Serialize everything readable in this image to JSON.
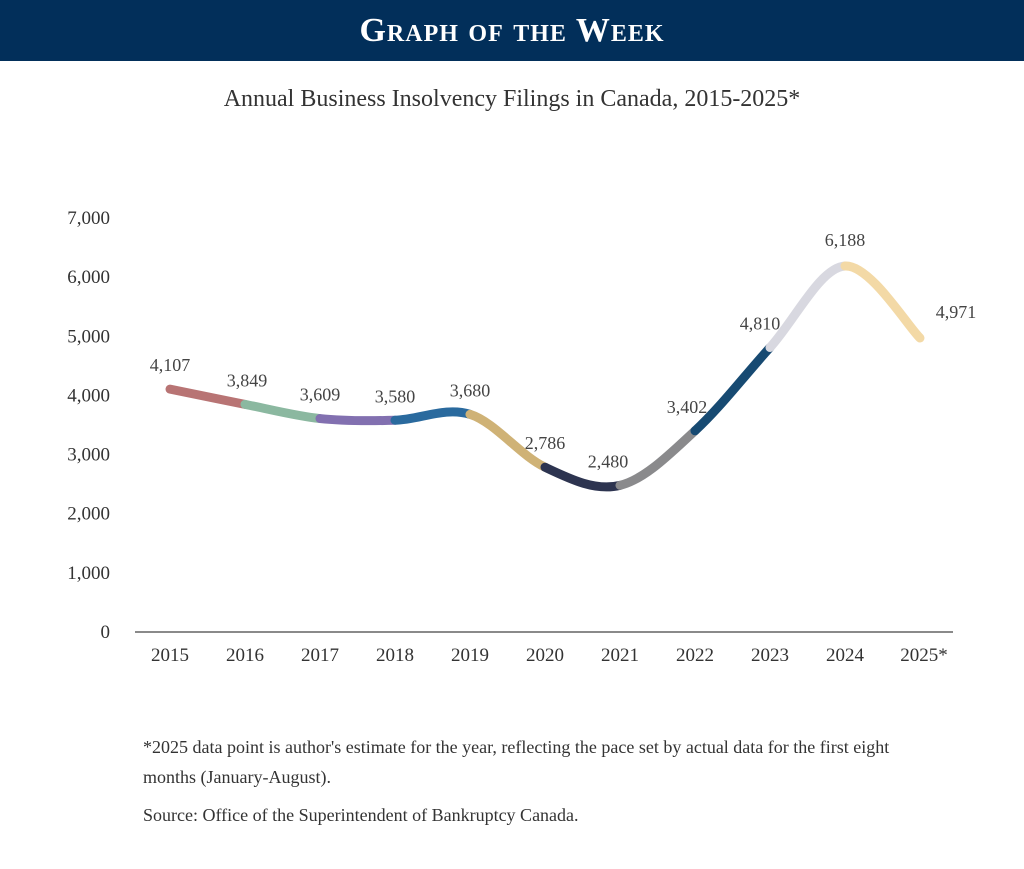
{
  "banner": {
    "title": "Graph of the Week"
  },
  "chart_data": {
    "type": "line",
    "title": "Annual Business Insolvency Filings in Canada, 2015-2025*",
    "xlabel": "",
    "ylabel": "",
    "categories": [
      "2015",
      "2016",
      "2017",
      "2018",
      "2019",
      "2020",
      "2021",
      "2022",
      "2023",
      "2024",
      "2025*"
    ],
    "values": [
      4107,
      3849,
      3609,
      3580,
      3680,
      2786,
      2480,
      3402,
      4810,
      6188,
      4971
    ],
    "data_labels": [
      "4,107",
      "3,849",
      "3,609",
      "3,580",
      "3,680",
      "2,786",
      "2,480",
      "3,402",
      "4,810",
      "6,188",
      "4,971"
    ],
    "ylim": [
      0,
      7000
    ],
    "yticks": [
      0,
      1000,
      2000,
      3000,
      4000,
      5000,
      6000,
      7000
    ],
    "ytick_labels": [
      "0",
      "1,000",
      "2,000",
      "3,000",
      "4,000",
      "5,000",
      "6,000",
      "7,000"
    ],
    "grid": false,
    "segment_colors": [
      "#b87474",
      "#8bb8a0",
      "#8270b0",
      "#2a6a9e",
      "#cfb276",
      "#2d3450",
      "#8a8a8c",
      "#174a72",
      "#d8d8e0",
      "#f3d9a6"
    ],
    "axis_color": "#8a8a8a"
  },
  "footnotes": {
    "note": "*2025 data point is author's estimate for the year, reflecting the pace set by actual data for the first eight months (January-August).",
    "source": "Source: Office of the Superintendent of Bankruptcy Canada."
  }
}
